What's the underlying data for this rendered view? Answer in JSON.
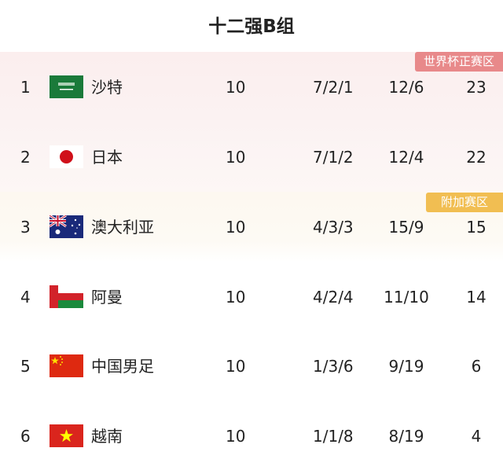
{
  "title": "十二强B组",
  "zones": {
    "direct": "世界杯正赛区",
    "playoff": "附加赛区",
    "direct_color": "#e8898a",
    "playoff_color": "#f1be52"
  },
  "rows": [
    {
      "rank": "1",
      "flag": "saudi-arabia-flag",
      "team": "沙特",
      "played": "10",
      "wdl": "7/2/1",
      "goals": "12/6",
      "points": "23"
    },
    {
      "rank": "2",
      "flag": "japan-flag",
      "team": "日本",
      "played": "10",
      "wdl": "7/1/2",
      "goals": "12/4",
      "points": "22"
    },
    {
      "rank": "3",
      "flag": "australia-flag",
      "team": "澳大利亚",
      "played": "10",
      "wdl": "4/3/3",
      "goals": "15/9",
      "points": "15"
    },
    {
      "rank": "4",
      "flag": "oman-flag",
      "team": "阿曼",
      "played": "10",
      "wdl": "4/2/4",
      "goals": "11/10",
      "points": "14"
    },
    {
      "rank": "5",
      "flag": "china-flag",
      "team": "中国男足",
      "played": "10",
      "wdl": "1/3/6",
      "goals": "9/19",
      "points": "6"
    },
    {
      "rank": "6",
      "flag": "vietnam-flag",
      "team": "越南",
      "played": "10",
      "wdl": "1/1/8",
      "goals": "8/19",
      "points": "4"
    }
  ]
}
